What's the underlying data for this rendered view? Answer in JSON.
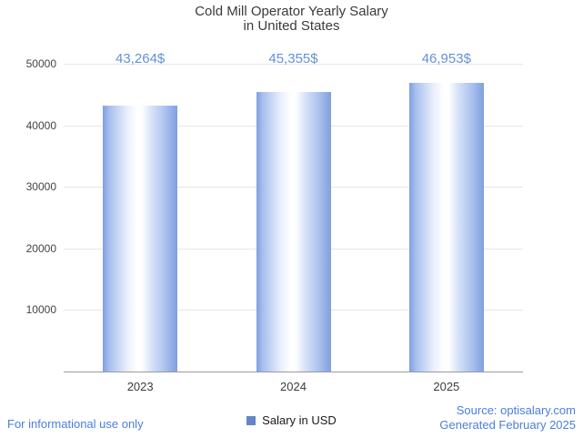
{
  "title": {
    "line1": "Cold Mill Operator Yearly Salary",
    "line2": "in United States"
  },
  "chart_data": {
    "type": "bar",
    "title": "Cold Mill Operator Yearly Salary in United States",
    "categories": [
      "2023",
      "2024",
      "2025"
    ],
    "values": [
      43264,
      45355,
      46953
    ],
    "value_labels": [
      "43,264$",
      "45,355$",
      "46,953$"
    ],
    "series_name": "Salary in USD",
    "xlabel": "",
    "ylabel": "",
    "ylim": [
      0,
      50000
    ],
    "yticks": [
      10000,
      20000,
      30000,
      40000,
      50000
    ],
    "grid": true,
    "legend_position": "bottom"
  },
  "legend": {
    "label": "Salary in USD"
  },
  "footer": {
    "left": "For informational use only",
    "right_line1": "Source: optisalary.com",
    "right_line2": "Generated February 2025"
  },
  "colors": {
    "bar_blue": "#7f9fe0",
    "value_label_blue": "#6490d9",
    "footer_blue": "#4b7de2",
    "legend_swatch": "#6585c8",
    "grid": "#e6e6e6",
    "axis": "#9a9a9a",
    "text": "#3b3b3b"
  }
}
